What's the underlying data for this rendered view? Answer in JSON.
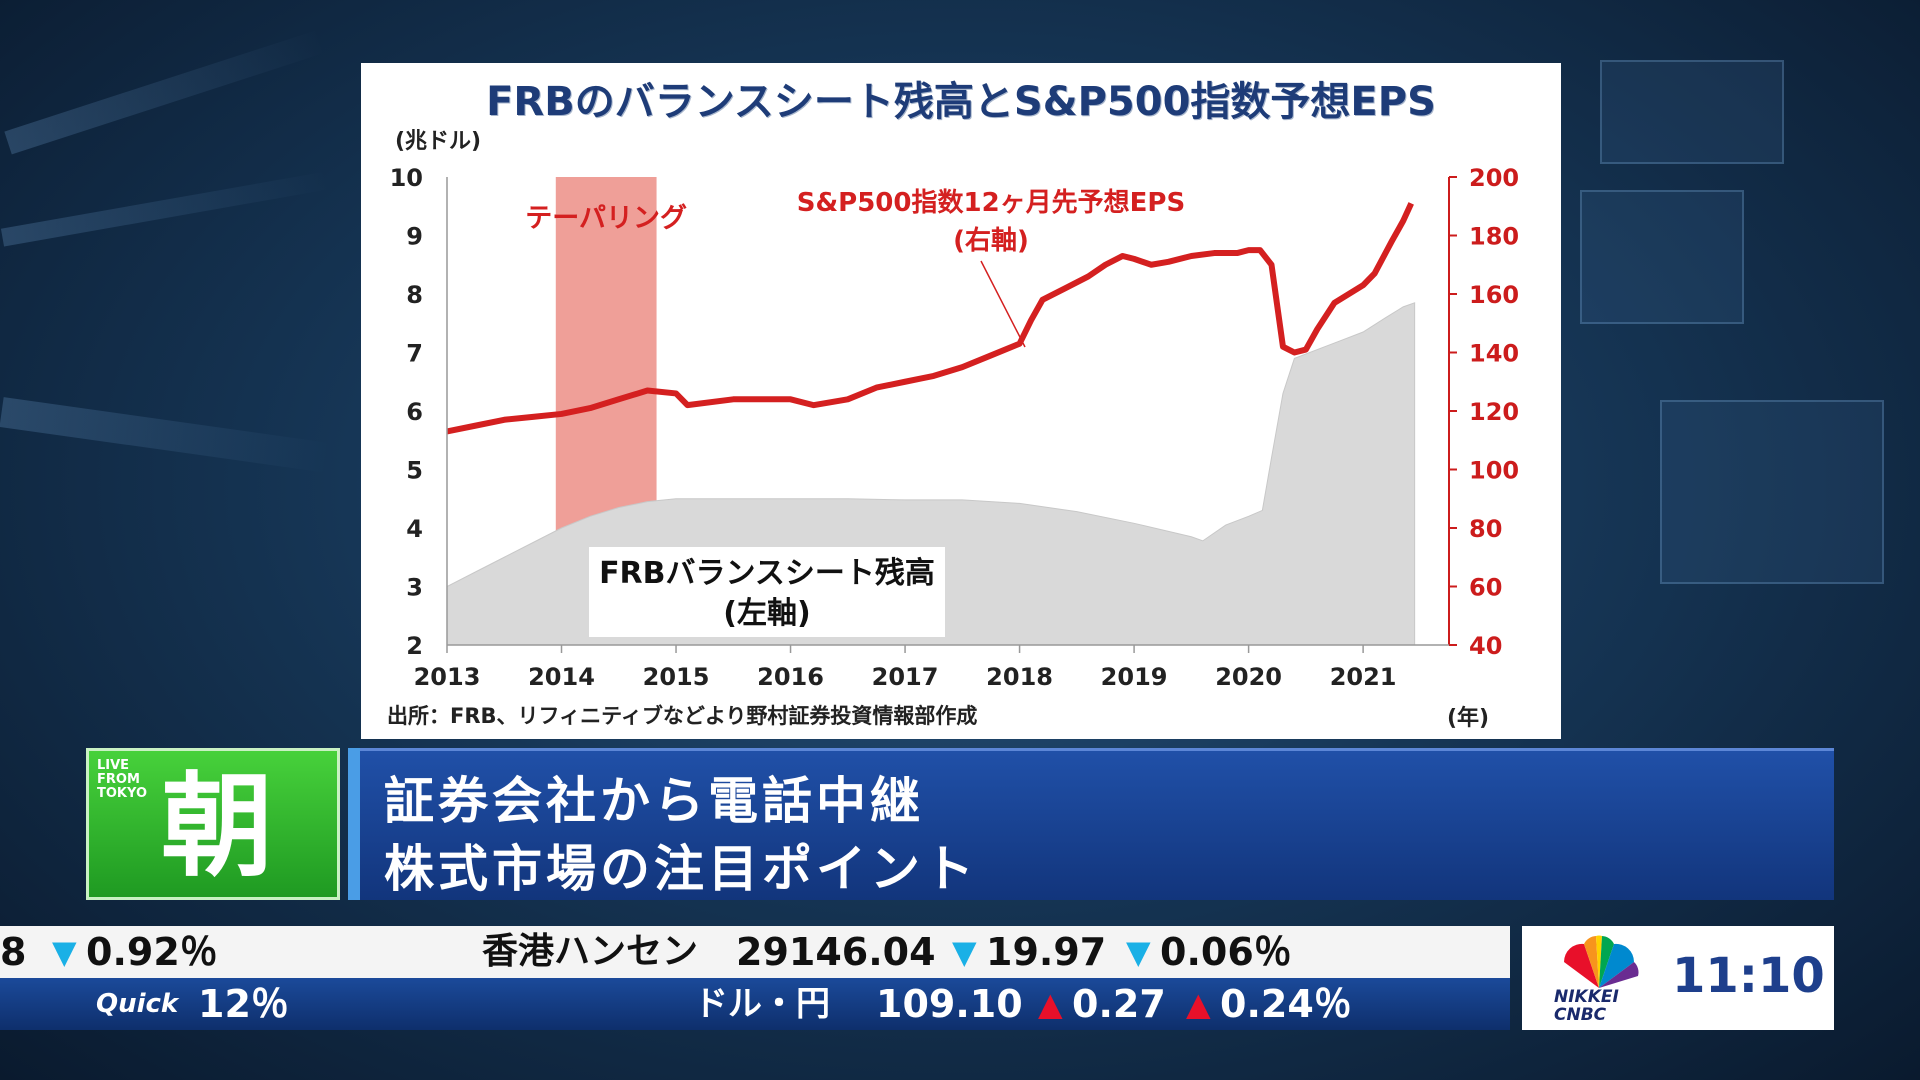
{
  "chart_data": {
    "type": "line",
    "title": "FRBのバランスシート残高とS&P500指数予想EPS",
    "left_axis_unit": "(兆ドル)",
    "x_unit": "(年)",
    "source": "出所：FRB、リフィニティブなどより野村証券投資情報部作成",
    "x_ticks": [
      "2013",
      "2014",
      "2015",
      "2016",
      "2017",
      "2018",
      "2019",
      "2020",
      "2021"
    ],
    "xlim": [
      2013.0,
      2021.75
    ],
    "left_axis": {
      "ylim": [
        2,
        10
      ],
      "ticks": [
        10,
        9,
        8,
        7,
        6,
        5,
        4,
        3,
        2
      ],
      "color": "#222222"
    },
    "right_axis": {
      "ylim": [
        40,
        200
      ],
      "ticks": [
        200,
        180,
        160,
        140,
        120,
        100,
        80,
        60,
        40
      ],
      "color": "#cc1c1c"
    },
    "shaded_region": {
      "label": "テーパリング",
      "x0": 2013.95,
      "x1": 2014.83,
      "color": "#ef9f98"
    },
    "series": [
      {
        "name": "FRBバランスシート残高",
        "label_line2": "(左軸)",
        "axis": "left",
        "style": "area",
        "color": "#d9d9d9",
        "points": [
          [
            2013.0,
            3.0
          ],
          [
            2013.25,
            3.25
          ],
          [
            2013.5,
            3.5
          ],
          [
            2013.75,
            3.75
          ],
          [
            2014.0,
            4.0
          ],
          [
            2014.25,
            4.2
          ],
          [
            2014.5,
            4.35
          ],
          [
            2014.75,
            4.45
          ],
          [
            2015.0,
            4.5
          ],
          [
            2015.5,
            4.5
          ],
          [
            2016.0,
            4.5
          ],
          [
            2016.5,
            4.5
          ],
          [
            2017.0,
            4.48
          ],
          [
            2017.5,
            4.48
          ],
          [
            2018.0,
            4.42
          ],
          [
            2018.5,
            4.28
          ],
          [
            2019.0,
            4.08
          ],
          [
            2019.5,
            3.85
          ],
          [
            2019.6,
            3.78
          ],
          [
            2019.8,
            4.05
          ],
          [
            2020.0,
            4.2
          ],
          [
            2020.12,
            4.3
          ],
          [
            2020.2,
            5.2
          ],
          [
            2020.3,
            6.3
          ],
          [
            2020.4,
            6.9
          ],
          [
            2020.6,
            7.05
          ],
          [
            2020.8,
            7.2
          ],
          [
            2021.0,
            7.35
          ],
          [
            2021.2,
            7.6
          ],
          [
            2021.35,
            7.78
          ],
          [
            2021.45,
            7.85
          ]
        ]
      },
      {
        "name": "S&P500指数12ヶ月先予想EPS",
        "label_line2": "(右軸)",
        "axis": "right",
        "style": "line",
        "color": "#d42020",
        "points": [
          [
            2013.0,
            113
          ],
          [
            2013.25,
            115
          ],
          [
            2013.5,
            117
          ],
          [
            2013.75,
            118
          ],
          [
            2014.0,
            119
          ],
          [
            2014.25,
            121
          ],
          [
            2014.5,
            124
          ],
          [
            2014.75,
            127
          ],
          [
            2015.0,
            126
          ],
          [
            2015.1,
            122
          ],
          [
            2015.5,
            124
          ],
          [
            2016.0,
            124
          ],
          [
            2016.2,
            122
          ],
          [
            2016.5,
            124
          ],
          [
            2016.75,
            128
          ],
          [
            2017.0,
            130
          ],
          [
            2017.25,
            132
          ],
          [
            2017.5,
            135
          ],
          [
            2017.75,
            139
          ],
          [
            2018.0,
            143
          ],
          [
            2018.1,
            151
          ],
          [
            2018.2,
            158
          ],
          [
            2018.4,
            162
          ],
          [
            2018.6,
            166
          ],
          [
            2018.75,
            170
          ],
          [
            2018.9,
            173
          ],
          [
            2019.0,
            172
          ],
          [
            2019.15,
            170
          ],
          [
            2019.3,
            171
          ],
          [
            2019.5,
            173
          ],
          [
            2019.7,
            174
          ],
          [
            2019.9,
            174
          ],
          [
            2020.0,
            175
          ],
          [
            2020.1,
            175
          ],
          [
            2020.2,
            170
          ],
          [
            2020.3,
            142
          ],
          [
            2020.4,
            140
          ],
          [
            2020.5,
            141
          ],
          [
            2020.6,
            148
          ],
          [
            2020.75,
            157
          ],
          [
            2021.0,
            163
          ],
          [
            2021.1,
            167
          ],
          [
            2021.25,
            178
          ],
          [
            2021.35,
            185
          ],
          [
            2021.42,
            191
          ]
        ]
      }
    ]
  },
  "lower_third": {
    "live_label": "LIVE FROM TOKYO",
    "program": "朝",
    "headline_line1": "証券会社から電話中継",
    "headline_line2": "株式市場の注目ポイント"
  },
  "ticker": {
    "top": {
      "partial_value": "8",
      "partial_pct": "0.92％",
      "name": "香港ハンセン",
      "value": "29146.04",
      "change": "19.97",
      "pct": "0.06％"
    },
    "bottom": {
      "brand": "Quick",
      "partial_pct": "12％",
      "name": "ドル・円",
      "value": "109.10",
      "change": "0.27",
      "pct": "0.24％"
    }
  },
  "network": {
    "logo_text_1": "NIKKEI",
    "logo_text_2": "CNBC",
    "time": "11:10"
  },
  "colors": {
    "chart_title": "#1e3c78",
    "eps_line": "#d42020",
    "balance_area": "#d9d9d9",
    "tapering_band": "#ef9f98",
    "headline_bg": "#1a459a",
    "program_green": "#2fb22e"
  }
}
